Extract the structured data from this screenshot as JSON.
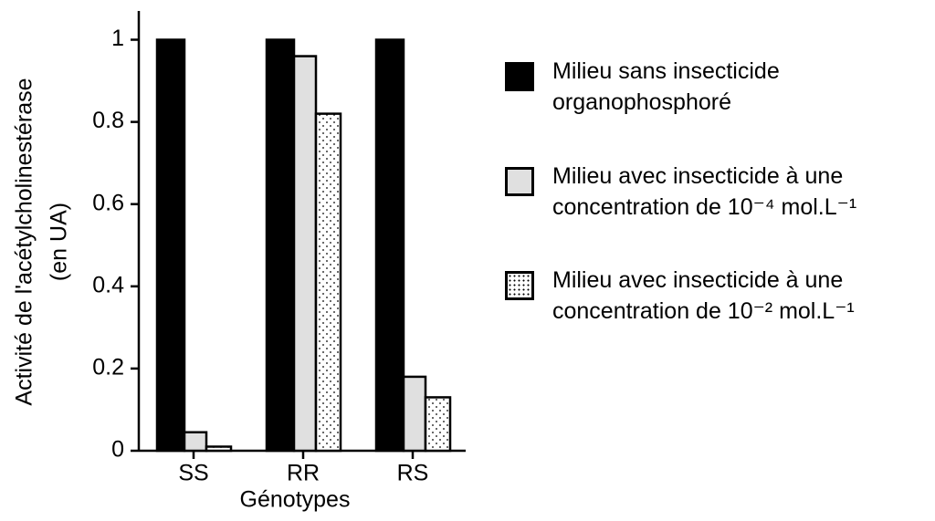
{
  "chart_data": {
    "type": "bar",
    "y_label": [
      "Activité de l'acétylcholinestérase",
      "(en UA)"
    ],
    "x_label": "Génotypes",
    "categories": [
      "SS",
      "RR",
      "RS"
    ],
    "series": [
      {
        "name": "Milieu sans insecticide organophosphoré",
        "color": "#000000",
        "values": [
          1,
          1,
          1
        ]
      },
      {
        "name": "Milieu avec insecticide à une concentration de 10⁻⁴ mol.L⁻¹",
        "color": "#e0e0e0",
        "values": [
          0.045,
          0.96,
          0.18
        ]
      },
      {
        "name": "Milieu avec insecticide à une concentration de 10⁻² mol.L⁻¹",
        "color": "#ffffff",
        "pattern": "dots",
        "values": [
          0.01,
          0.82,
          0.13
        ]
      }
    ],
    "ylim": [
      0,
      1.07
    ],
    "yticks": [
      0,
      0.2,
      0.4,
      0.6,
      0.8,
      1
    ],
    "grid": false
  }
}
